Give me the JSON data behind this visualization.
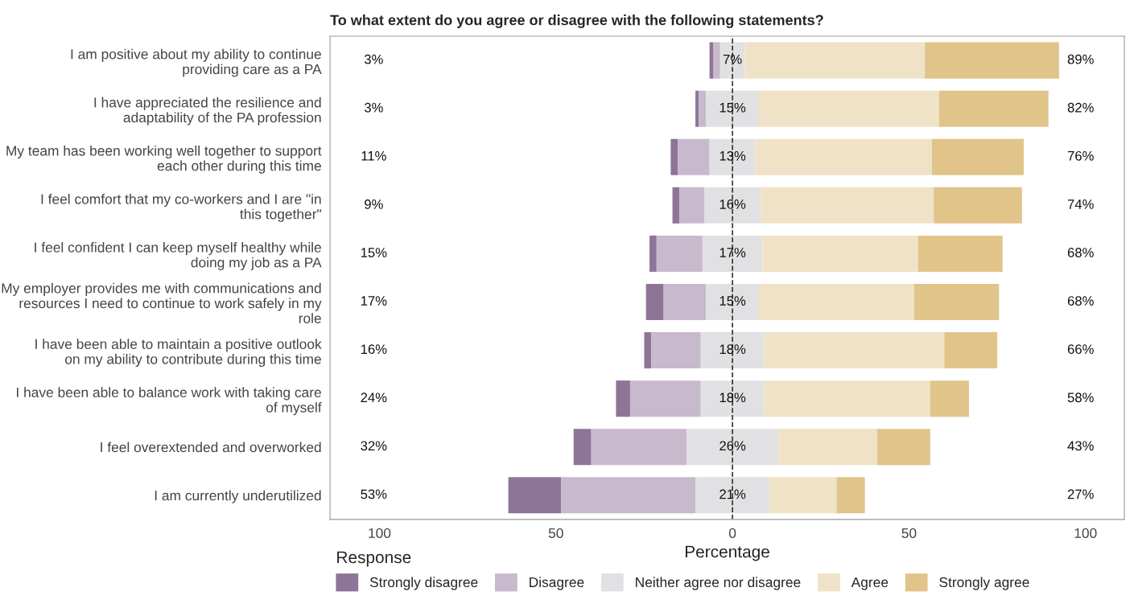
{
  "chart_data": {
    "type": "bar",
    "orientation": "horizontal",
    "title": "To what extent do you agree or disagree with the following statements?",
    "xlabel": "Percentage",
    "legend_title": "Response",
    "legend": "bottom",
    "grid": false,
    "categories": [
      "I am positive about my ability to continue\nproviding care as a PA",
      "I have appreciated the resilience and\nadaptability of the PA profession",
      "My team has been working well together to support\neach other during this time",
      "I feel comfort that my co-workers and I are \"in\nthis together\"",
      "I feel confident I can keep myself healthy while\ndoing my job as a PA",
      "My employer provides me with communications and\nresources I need to continue to work safely in my\nrole",
      "I have been able to maintain a positive outlook\non my ability to contribute during this time",
      "I have been able to balance work with taking care\nof myself",
      "I feel overextended and overworked",
      "I am currently underutilized"
    ],
    "series": [
      {
        "name": "Strongly disagree",
        "color": "#8e7597",
        "values": [
          1,
          1,
          2,
          2,
          2,
          5,
          2,
          4,
          5,
          15
        ],
        "base": [
          -6.5,
          -10.5,
          -17.5,
          -17,
          -23.5,
          -24.5,
          -25,
          -33,
          -45,
          -63.5
        ]
      },
      {
        "name": "Disagree",
        "color": "#c8b9cc",
        "values": [
          2,
          2,
          9,
          7,
          13,
          12,
          14,
          20,
          27,
          38
        ],
        "base": [
          -5.5,
          -9.5,
          -15.5,
          -15,
          -21.5,
          -19.5,
          -23,
          -29,
          -40,
          -48.5
        ]
      },
      {
        "name": "Neither agree nor disagree",
        "color": "#e1e1e3",
        "values": [
          7,
          15,
          13,
          16,
          17,
          15,
          18,
          18,
          26,
          21
        ],
        "base": [
          -3.5,
          -7.5,
          -6.5,
          -8,
          -8.5,
          -7.5,
          -9,
          -9,
          -13,
          -10.5
        ],
        "value_labels": [
          "7%",
          "15%",
          "13%",
          "16%",
          "17%",
          "15%",
          "18%",
          "18%",
          "26%",
          "21%"
        ]
      },
      {
        "name": "Agree",
        "color": "#f0e2c6",
        "values": [
          51,
          51,
          50,
          49,
          44,
          44,
          51,
          47,
          28,
          19
        ],
        "base": [
          3.5,
          7.5,
          6.5,
          8,
          8.5,
          7.5,
          9,
          9,
          13,
          10.5
        ]
      },
      {
        "name": "Strongly agree",
        "color": "#e0c48a",
        "values": [
          38,
          31,
          26,
          25,
          24,
          24,
          15,
          11,
          15,
          8
        ],
        "base": [
          54.5,
          58.5,
          56.5,
          57,
          52.5,
          51.5,
          60,
          56,
          41,
          29.5
        ]
      }
    ],
    "xlim": [
      -114,
      111
    ],
    "xticks": [
      {
        "value": -100,
        "label": "100"
      },
      {
        "value": -50,
        "label": "50"
      },
      0,
      50,
      100
    ],
    "ref_lines": [
      {
        "axis": "x",
        "value": 0,
        "line_style": "dashed",
        "color": "#333333"
      }
    ],
    "annotations": [
      "3%",
      "3%",
      "11%",
      "9%",
      "15%",
      "17%",
      "16%",
      "24%",
      "32%",
      "53%",
      "89%",
      "82%",
      "76%",
      "74%",
      "68%",
      "68%",
      "66%",
      "58%",
      "43%",
      "27%"
    ]
  }
}
